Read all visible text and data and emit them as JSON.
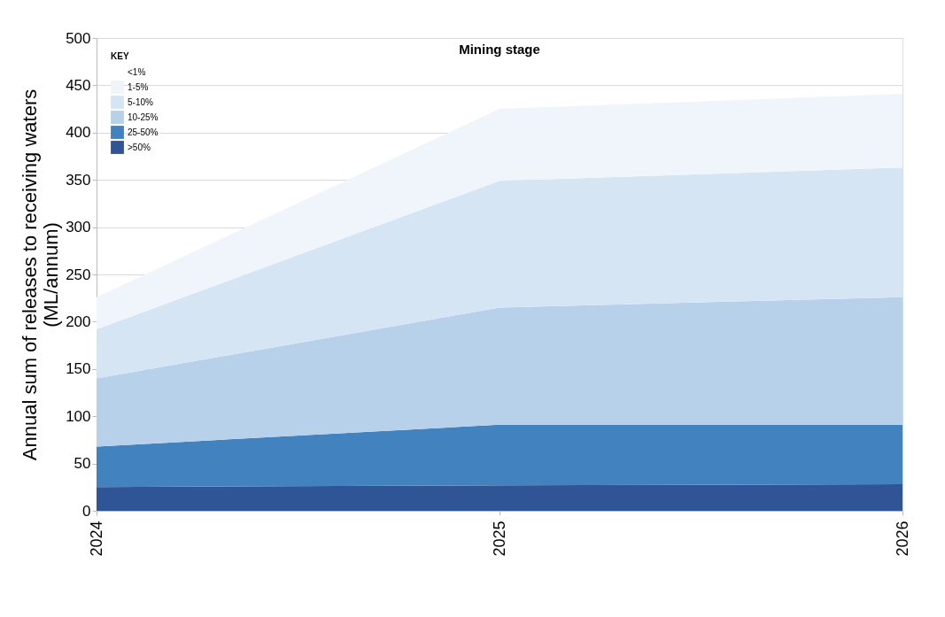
{
  "chart_data": {
    "type": "area",
    "title": "Mining stage",
    "ylabel": "Annual sum of releases to receiving waters\n(ML/annum)",
    "legend_title": "KEY",
    "categories": [
      "2024",
      "2025",
      "2026"
    ],
    "stacked": true,
    "series": [
      {
        "name": ">50%",
        "color": "#2f5597",
        "values": [
          25,
          27,
          28
        ]
      },
      {
        "name": "25-50%",
        "color": "#4282be",
        "values": [
          43,
          64,
          63
        ]
      },
      {
        "name": "10-25%",
        "color": "#b7d1eb",
        "values": [
          72,
          124,
          135
        ]
      },
      {
        "name": "5-10%",
        "color": "#d5e5f4",
        "values": [
          52,
          134,
          137
        ]
      },
      {
        "name": "1-5%",
        "color": "#eff5fa",
        "values": [
          34,
          76,
          78
        ]
      },
      {
        "name": "<1%",
        "values": [
          null,
          null,
          null
        ]
      }
    ],
    "ylim": [
      0,
      500
    ],
    "yticks": [
      0,
      50,
      100,
      150,
      200,
      250,
      300,
      350,
      400,
      450,
      500
    ],
    "grid": "y",
    "legend": "top left"
  }
}
